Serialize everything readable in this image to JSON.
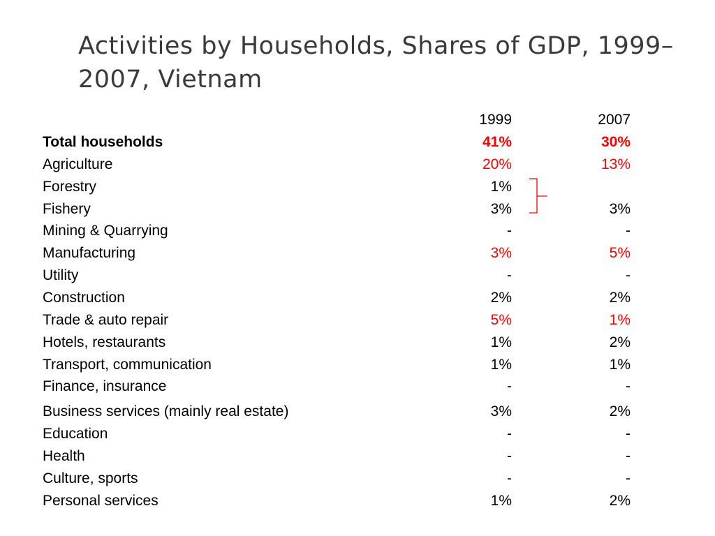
{
  "title": "Activities by Households, Shares of GDP, 1999– 2007, Vietnam",
  "header": {
    "col1": "1999",
    "col2": "2007"
  },
  "rows": [
    {
      "label": "Total households",
      "v1999": "41%",
      "v2007": "30%"
    },
    {
      "label": "Agriculture",
      "v1999": "20%",
      "v2007": "13%"
    },
    {
      "label": "Forestry",
      "v1999": "1%",
      "v2007": ""
    },
    {
      "label": "Fishery",
      "v1999": "3%",
      "v2007": "3%"
    },
    {
      "label": "Mining & Quarrying",
      "v1999": "-",
      "v2007": "-"
    },
    {
      "label": "Manufacturing",
      "v1999": "3%",
      "v2007": "5%"
    },
    {
      "label": "Utility",
      "v1999": "-",
      "v2007": "-"
    },
    {
      "label": "Construction",
      "v1999": "2%",
      "v2007": "2%"
    },
    {
      "label": "Trade & auto repair",
      "v1999": "5%",
      "v2007": "1%"
    },
    {
      "label": "Hotels, restaurants",
      "v1999": "1%",
      "v2007": "2%"
    },
    {
      "label": "Transport, communication",
      "v1999": "1%",
      "v2007": "1%"
    },
    {
      "label": "Finance, insurance",
      "v1999": "-",
      "v2007": "-"
    },
    {
      "label": "Business services (mainly real estate)",
      "v1999": "3%",
      "v2007": "2%"
    },
    {
      "label": "Education",
      "v1999": "-",
      "v2007": "-"
    },
    {
      "label": "Health",
      "v1999": "-",
      "v2007": "-"
    },
    {
      "label": "Culture, sports",
      "v1999": "-",
      "v2007": "-"
    },
    {
      "label": "Personal services",
      "v1999": "1%",
      "v2007": "2%"
    }
  ],
  "colors": {
    "highlight": "#ff0000",
    "title": "#3a3a3a",
    "text": "#000000"
  }
}
